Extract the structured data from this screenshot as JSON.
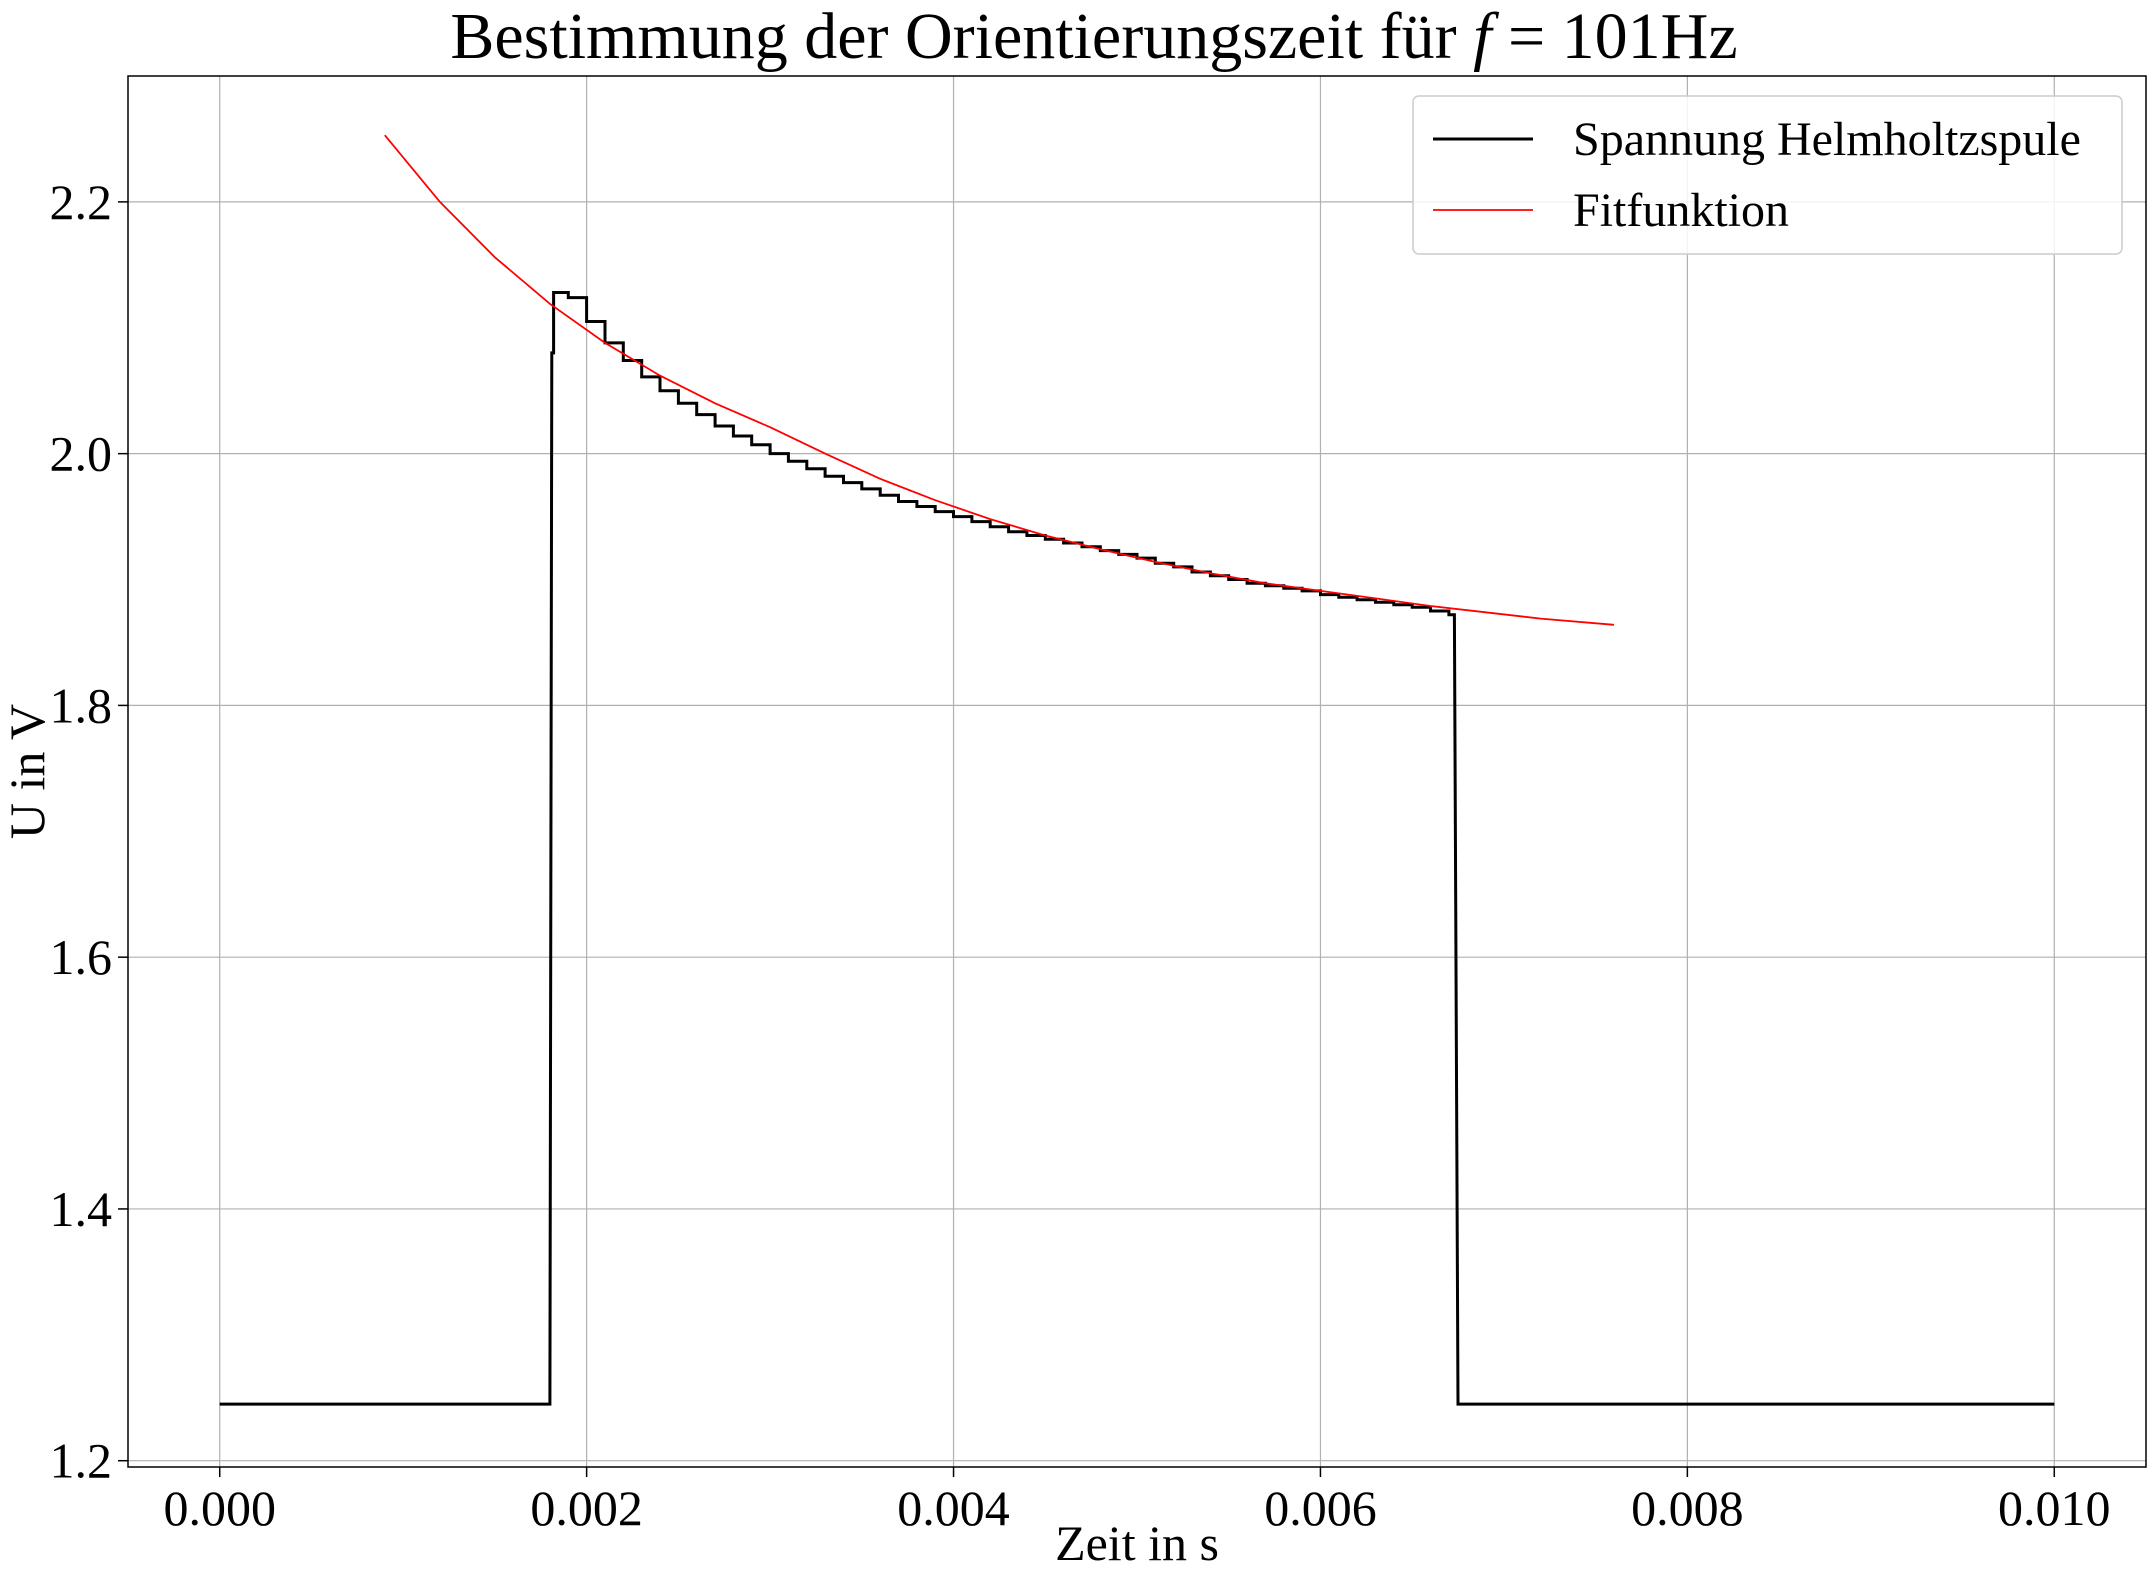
{
  "chart_data": {
    "type": "line",
    "title": {
      "prefix": "Bestimmung der Orientierungszeit für ",
      "variable": "f",
      "suffix": " = 101Hz"
    },
    "xlabel": "Zeit in s",
    "ylabel": "U in V",
    "xlim": [
      -0.0005,
      0.0105
    ],
    "ylim": [
      1.195,
      2.3
    ],
    "xticks": [
      0.0,
      0.002,
      0.004,
      0.006,
      0.008,
      0.01
    ],
    "xtick_labels": [
      "0.000",
      "0.002",
      "0.004",
      "0.006",
      "0.008",
      "0.010"
    ],
    "yticks": [
      1.2,
      1.4,
      1.6,
      1.8,
      2.0,
      2.2
    ],
    "ytick_labels": [
      "1.2",
      "1.4",
      "1.6",
      "1.8",
      "2.0",
      "2.2"
    ],
    "grid": true,
    "legend_position": "top-right",
    "series": [
      {
        "name": "Spannung Helmholtzspule",
        "color": "#000000",
        "kind": "measured",
        "x": [
          0.0,
          0.0018,
          0.00181,
          0.00182,
          0.00186,
          0.0019,
          0.002,
          0.0021,
          0.0022,
          0.0023,
          0.0024,
          0.0025,
          0.0026,
          0.0027,
          0.0028,
          0.0029,
          0.003,
          0.0031,
          0.0032,
          0.0033,
          0.0034,
          0.0035,
          0.0036,
          0.0037,
          0.0038,
          0.0039,
          0.004,
          0.0041,
          0.0042,
          0.0043,
          0.0044,
          0.0045,
          0.0046,
          0.0047,
          0.0048,
          0.0049,
          0.005,
          0.0051,
          0.0052,
          0.0053,
          0.0054,
          0.0055,
          0.0056,
          0.0057,
          0.0058,
          0.0059,
          0.006,
          0.0061,
          0.0062,
          0.0063,
          0.0064,
          0.0065,
          0.0066,
          0.0067,
          0.00673,
          0.00675,
          0.0068,
          0.01
        ],
        "y": [
          1.245,
          1.245,
          2.08,
          2.128,
          2.128,
          2.124,
          2.105,
          2.088,
          2.074,
          2.061,
          2.05,
          2.04,
          2.031,
          2.022,
          2.014,
          2.007,
          2.0,
          1.994,
          1.988,
          1.982,
          1.977,
          1.972,
          1.967,
          1.962,
          1.958,
          1.954,
          1.95,
          1.946,
          1.942,
          1.938,
          1.935,
          1.932,
          1.929,
          1.926,
          1.923,
          1.92,
          1.917,
          1.913,
          1.91,
          1.906,
          1.903,
          1.9,
          1.897,
          1.895,
          1.893,
          1.891,
          1.888,
          1.886,
          1.884,
          1.882,
          1.88,
          1.878,
          1.875,
          1.872,
          1.872,
          1.245,
          1.245,
          1.245
        ]
      },
      {
        "name": "Fitfunktion",
        "color": "#ff0000",
        "kind": "fit",
        "x": [
          0.0009,
          0.0012,
          0.0015,
          0.0018,
          0.0021,
          0.0024,
          0.0027,
          0.003,
          0.0033,
          0.0036,
          0.0039,
          0.0042,
          0.0045,
          0.0048,
          0.0051,
          0.0054,
          0.0057,
          0.006,
          0.0063,
          0.0066,
          0.0069,
          0.0072,
          0.0076
        ],
        "y": [
          2.253,
          2.2,
          2.156,
          2.119,
          2.088,
          2.062,
          2.04,
          2.021,
          2.0,
          1.98,
          1.963,
          1.948,
          1.935,
          1.924,
          1.914,
          1.905,
          1.897,
          1.891,
          1.885,
          1.879,
          1.874,
          1.869,
          1.864
        ]
      }
    ]
  }
}
